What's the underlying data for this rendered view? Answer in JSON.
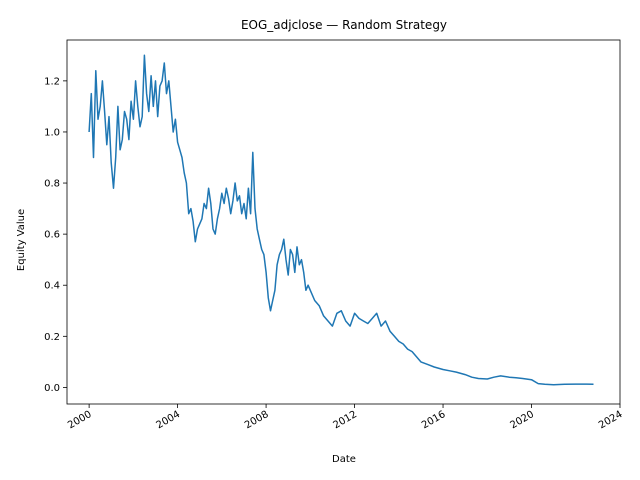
{
  "chart_data": {
    "type": "line",
    "title": "EOG_adjclose — Random Strategy",
    "xlabel": "Date",
    "ylabel": "Equity Value",
    "x_tick_labels": [
      "2000",
      "2004",
      "2008",
      "2012",
      "2016",
      "2020",
      "2024"
    ],
    "x_tick_years": [
      2000,
      2004,
      2008,
      2012,
      2016,
      2020,
      2024
    ],
    "y_tick_labels": [
      "0.0",
      "0.2",
      "0.4",
      "0.6",
      "0.8",
      "1.0",
      "1.2"
    ],
    "y_tick_values": [
      0.0,
      0.2,
      0.4,
      0.6,
      0.8,
      1.0,
      1.2
    ],
    "xlim": [
      1999.0,
      2024.0
    ],
    "ylim": [
      -0.065,
      1.36
    ],
    "grid": false,
    "line_color": "#1f77b4",
    "series": [
      {
        "x": [
          2000.0,
          2000.1,
          2000.2,
          2000.3,
          2000.4,
          2000.5,
          2000.6,
          2000.7,
          2000.8,
          2000.9,
          2001.0,
          2001.1,
          2001.2,
          2001.3,
          2001.4,
          2001.5,
          2001.6,
          2001.7,
          2001.8,
          2001.9,
          2002.0,
          2002.1,
          2002.2,
          2002.3,
          2002.4,
          2002.5,
          2002.6,
          2002.7,
          2002.8,
          2002.9,
          2003.0,
          2003.1,
          2003.2,
          2003.3,
          2003.4,
          2003.5,
          2003.6,
          2003.7,
          2003.8,
          2003.9,
          2004.0,
          2004.1,
          2004.2,
          2004.3,
          2004.4,
          2004.5,
          2004.6,
          2004.7,
          2004.8,
          2004.9,
          2005.0,
          2005.1,
          2005.2,
          2005.3,
          2005.4,
          2005.5,
          2005.6,
          2005.7,
          2005.8,
          2005.9,
          2006.0,
          2006.1,
          2006.2,
          2006.3,
          2006.4,
          2006.5,
          2006.6,
          2006.7,
          2006.8,
          2006.9,
          2007.0,
          2007.1,
          2007.2,
          2007.3,
          2007.4,
          2007.5,
          2007.6,
          2007.7,
          2007.8,
          2007.9,
          2008.0,
          2008.1,
          2008.2,
          2008.3,
          2008.4,
          2008.5,
          2008.6,
          2008.7,
          2008.8,
          2008.9,
          2009.0,
          2009.1,
          2009.2,
          2009.3,
          2009.4,
          2009.5,
          2009.6,
          2009.7,
          2009.8,
          2009.9,
          2010.0,
          2010.2,
          2010.4,
          2010.6,
          2010.8,
          2011.0,
          2011.2,
          2011.4,
          2011.6,
          2011.8,
          2012.0,
          2012.2,
          2012.4,
          2012.6,
          2012.8,
          2013.0,
          2013.2,
          2013.4,
          2013.6,
          2013.8,
          2014.0,
          2014.2,
          2014.4,
          2014.6,
          2014.8,
          2015.0,
          2015.3,
          2015.6,
          2016.0,
          2016.3,
          2016.6,
          2017.0,
          2017.3,
          2017.6,
          2018.0,
          2018.3,
          2018.6,
          2019.0,
          2019.3,
          2019.6,
          2020.0,
          2020.3,
          2020.6,
          2021.0,
          2021.5,
          2022.0,
          2022.5,
          2022.8
        ],
        "y": [
          1.0,
          1.15,
          0.9,
          1.24,
          1.05,
          1.1,
          1.2,
          1.08,
          0.95,
          1.06,
          0.88,
          0.78,
          0.9,
          1.1,
          0.93,
          0.97,
          1.08,
          1.05,
          0.97,
          1.12,
          1.05,
          1.2,
          1.1,
          1.02,
          1.06,
          1.3,
          1.15,
          1.08,
          1.22,
          1.1,
          1.2,
          1.06,
          1.18,
          1.2,
          1.27,
          1.15,
          1.2,
          1.1,
          1.0,
          1.05,
          0.96,
          0.93,
          0.9,
          0.84,
          0.8,
          0.68,
          0.7,
          0.65,
          0.57,
          0.62,
          0.64,
          0.66,
          0.72,
          0.7,
          0.78,
          0.72,
          0.62,
          0.6,
          0.66,
          0.7,
          0.76,
          0.72,
          0.78,
          0.74,
          0.68,
          0.73,
          0.8,
          0.73,
          0.75,
          0.68,
          0.72,
          0.66,
          0.78,
          0.68,
          0.92,
          0.7,
          0.62,
          0.58,
          0.54,
          0.52,
          0.45,
          0.35,
          0.3,
          0.34,
          0.38,
          0.48,
          0.52,
          0.54,
          0.58,
          0.5,
          0.44,
          0.54,
          0.52,
          0.45,
          0.55,
          0.48,
          0.5,
          0.45,
          0.38,
          0.4,
          0.38,
          0.34,
          0.32,
          0.28,
          0.26,
          0.24,
          0.29,
          0.3,
          0.26,
          0.24,
          0.29,
          0.27,
          0.26,
          0.25,
          0.27,
          0.29,
          0.24,
          0.26,
          0.22,
          0.2,
          0.18,
          0.17,
          0.15,
          0.14,
          0.12,
          0.1,
          0.09,
          0.08,
          0.07,
          0.065,
          0.06,
          0.05,
          0.04,
          0.035,
          0.033,
          0.04,
          0.045,
          0.04,
          0.038,
          0.035,
          0.03,
          0.015,
          0.012,
          0.01,
          0.012,
          0.013,
          0.013,
          0.012
        ]
      }
    ]
  }
}
